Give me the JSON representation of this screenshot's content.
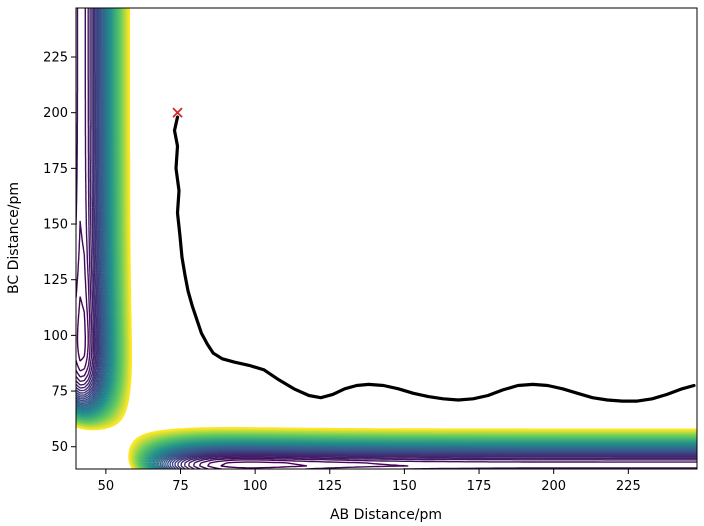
{
  "chart_data": {
    "type": "contour",
    "xlabel": "AB Distance/pm",
    "ylabel": "BC Distance/pm",
    "xlim": [
      40,
      248
    ],
    "ylim": [
      40,
      247
    ],
    "xticks": [
      50,
      75,
      100,
      125,
      150,
      175,
      200,
      225
    ],
    "yticks": [
      50,
      75,
      100,
      125,
      150,
      175,
      200,
      225
    ],
    "grid": false,
    "colormap": [
      "#440154",
      "#3b528b",
      "#21918c",
      "#5ec962",
      "#fde725"
    ],
    "trajectory_color": "#000000",
    "start_marker": {
      "x": 74,
      "y": 200,
      "symbol": "x",
      "color": "#d62728"
    },
    "trajectory": {
      "x": [
        74,
        73,
        74,
        73.5,
        74.5,
        74,
        74.8,
        75.5,
        76.5,
        77.5,
        79,
        80.5,
        82,
        84,
        86,
        89,
        93,
        98,
        103,
        108,
        113,
        118,
        122,
        126,
        130,
        134,
        138,
        143,
        148,
        153,
        158,
        163,
        168,
        173,
        178,
        183,
        188,
        193,
        198,
        203,
        208,
        213,
        218,
        223,
        228,
        233,
        238,
        243,
        247
      ],
      "y": [
        198,
        192,
        185,
        175,
        165,
        155,
        145,
        135,
        127,
        120,
        113,
        107,
        101,
        96,
        92,
        89.5,
        88,
        86.5,
        84.5,
        80,
        76,
        73,
        72,
        73.5,
        76,
        77.5,
        78,
        77.5,
        76,
        74,
        72.5,
        71.5,
        71,
        71.5,
        73,
        75.5,
        77.5,
        78,
        77.5,
        76,
        74,
        72,
        71,
        70.5,
        70.5,
        71.5,
        73.5,
        76,
        77.5
      ]
    }
  }
}
